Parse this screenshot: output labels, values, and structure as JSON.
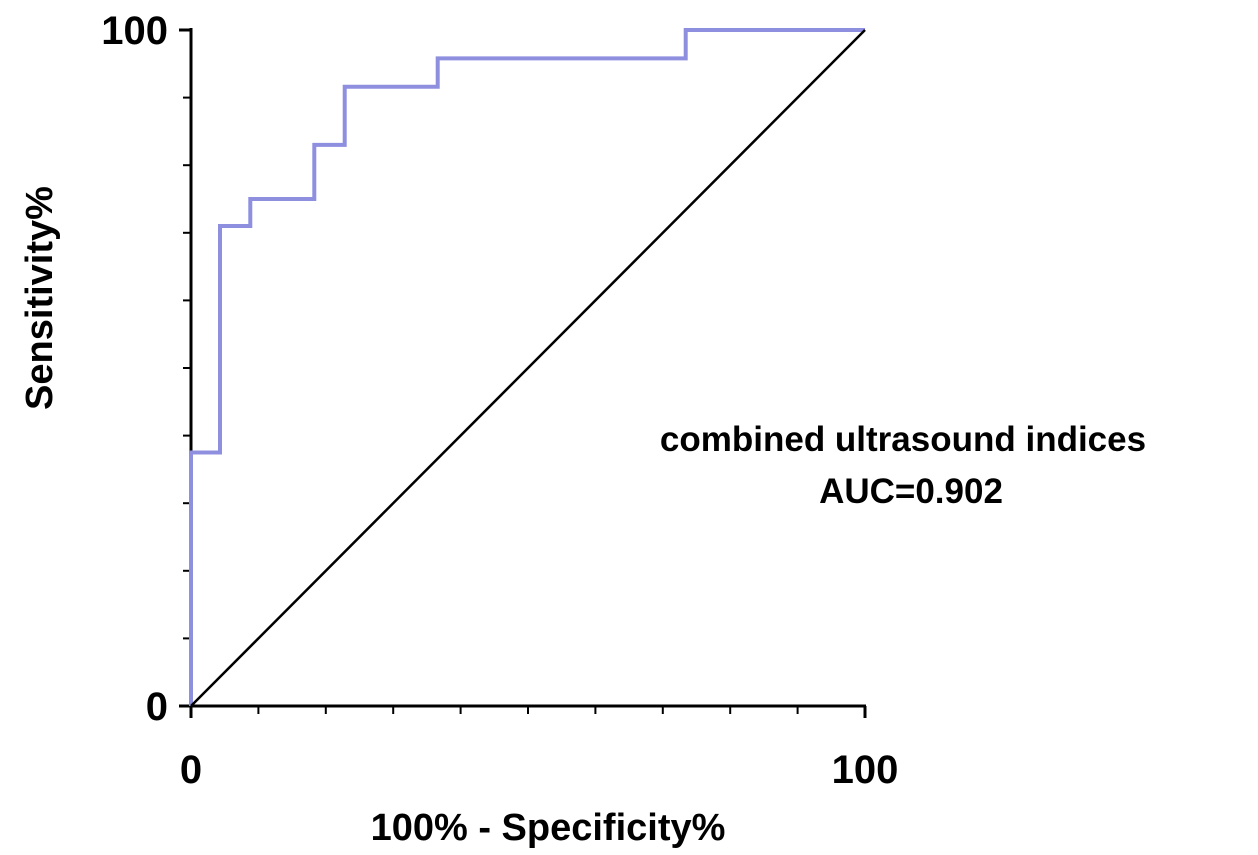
{
  "chart_data": {
    "type": "line",
    "title": "",
    "xlabel": "100% - Specificity%",
    "ylabel": "Sensitivity%",
    "xlim": [
      0,
      100
    ],
    "ylim": [
      0,
      100
    ],
    "x_tick_labels": [
      "0",
      "100"
    ],
    "y_tick_labels": [
      "0",
      "100"
    ],
    "x_minor_ticks": [
      0,
      10,
      20,
      30,
      40,
      50,
      60,
      70,
      80,
      90,
      100
    ],
    "y_minor_ticks": [
      0,
      10,
      20,
      30,
      40,
      50,
      60,
      70,
      80,
      90,
      100
    ],
    "grid": false,
    "annotation": {
      "line1": "combined ultrasound indices",
      "line2": "AUC=0.902"
    },
    "series": [
      {
        "color": "#8f8fe0",
        "x": [
          0,
          0,
          4.3,
          4.3,
          8.8,
          8.8,
          18.3,
          18.3,
          22.8,
          22.8,
          36.6,
          36.6,
          73.4,
          73.4,
          100
        ],
        "y": [
          0,
          37.5,
          37.5,
          71,
          71,
          75,
          75,
          83,
          83,
          91.6,
          91.6,
          95.8,
          95.8,
          100,
          100
        ]
      },
      {
        "color": "#000000",
        "x": [
          0,
          100
        ],
        "y": [
          0,
          100
        ]
      }
    ]
  }
}
